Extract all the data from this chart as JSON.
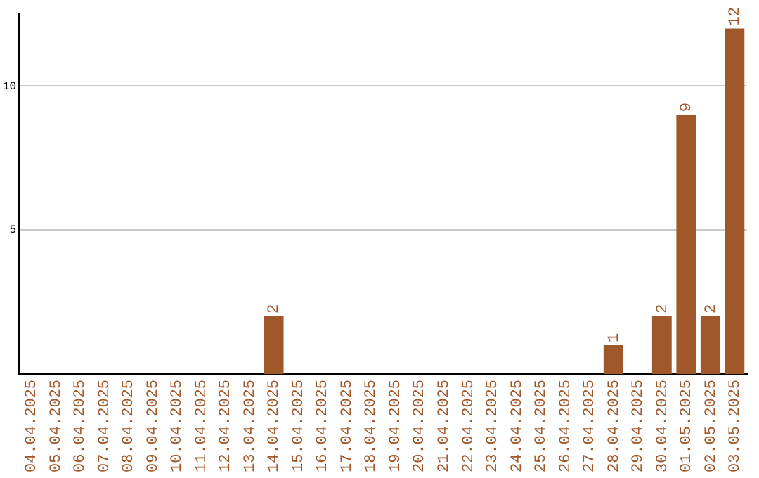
{
  "chart_data": {
    "type": "bar",
    "categories": [
      "04.04.2025",
      "05.04.2025",
      "06.04.2025",
      "07.04.2025",
      "08.04.2025",
      "09.04.2025",
      "10.04.2025",
      "11.04.2025",
      "12.04.2025",
      "13.04.2025",
      "14.04.2025",
      "15.04.2025",
      "16.04.2025",
      "17.04.2025",
      "18.04.2025",
      "19.04.2025",
      "20.04.2025",
      "21.04.2025",
      "22.04.2025",
      "23.04.2025",
      "24.04.2025",
      "25.04.2025",
      "26.04.2025",
      "27.04.2025",
      "28.04.2025",
      "29.04.2025",
      "30.04.2025",
      "01.05.2025",
      "02.05.2025",
      "03.05.2025"
    ],
    "values": [
      0,
      0,
      0,
      0,
      0,
      0,
      0,
      0,
      0,
      0,
      2,
      0,
      0,
      0,
      0,
      0,
      0,
      0,
      0,
      0,
      0,
      0,
      0,
      0,
      1,
      0,
      2,
      9,
      2,
      12
    ],
    "value_labels": [
      null,
      null,
      null,
      null,
      null,
      null,
      null,
      null,
      null,
      null,
      "2",
      null,
      null,
      null,
      null,
      null,
      null,
      null,
      null,
      null,
      null,
      null,
      null,
      null,
      "1",
      null,
      "2",
      "9",
      "2",
      "12"
    ],
    "color": "#a0582a",
    "ylim": [
      0,
      12.5
    ],
    "yticks": [
      5,
      10
    ],
    "grid": "y",
    "legend": false
  }
}
